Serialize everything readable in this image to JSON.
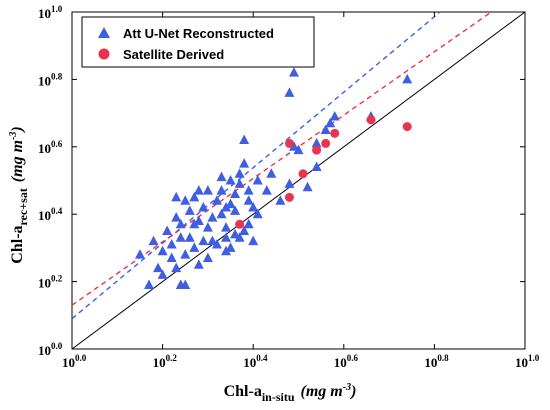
{
  "chart_data": {
    "type": "scatter",
    "xlim": [
      0.0,
      1.0
    ],
    "ylim": [
      0.0,
      1.0
    ],
    "log_scale": true,
    "x_ticks": [
      {
        "base": "10",
        "exp": "0.0"
      },
      {
        "base": "10",
        "exp": "0.2"
      },
      {
        "base": "10",
        "exp": "0.4"
      },
      {
        "base": "10",
        "exp": "0.6"
      },
      {
        "base": "10",
        "exp": "0.8"
      },
      {
        "base": "10",
        "exp": "1.0"
      }
    ],
    "y_ticks": [
      {
        "base": "10",
        "exp": "0.0"
      },
      {
        "base": "10",
        "exp": "0.2"
      },
      {
        "base": "10",
        "exp": "0.4"
      },
      {
        "base": "10",
        "exp": "0.6"
      },
      {
        "base": "10",
        "exp": "0.8"
      },
      {
        "base": "10",
        "exp": "1.0"
      }
    ],
    "xlabel": {
      "main": "Chl-a",
      "sub": "in-situ",
      "unit": "mg m",
      "unit_sup": "-3",
      "close": ")",
      "open": "("
    },
    "ylabel": {
      "main": "Chl-a",
      "sub": "rec+sat",
      "unit": "mg m",
      "unit_sup": "-3",
      "close": ")",
      "open": "("
    },
    "legend_position": "top-left",
    "identity_line": {
      "color": "#000000"
    },
    "series": [
      {
        "name": "Att U-Net Reconstructed",
        "marker": "triangle",
        "color": "#3f5fe0",
        "fit": {
          "intercept": 0.09,
          "slope": 1.12
        },
        "points": [
          [
            0.15,
            0.28
          ],
          [
            0.17,
            0.19
          ],
          [
            0.18,
            0.32
          ],
          [
            0.19,
            0.24
          ],
          [
            0.2,
            0.29
          ],
          [
            0.2,
            0.22
          ],
          [
            0.21,
            0.35
          ],
          [
            0.22,
            0.31
          ],
          [
            0.22,
            0.27
          ],
          [
            0.23,
            0.24
          ],
          [
            0.23,
            0.39
          ],
          [
            0.23,
            0.45
          ],
          [
            0.24,
            0.19
          ],
          [
            0.24,
            0.33
          ],
          [
            0.24,
            0.37
          ],
          [
            0.25,
            0.19
          ],
          [
            0.25,
            0.28
          ],
          [
            0.25,
            0.44
          ],
          [
            0.26,
            0.41
          ],
          [
            0.26,
            0.33
          ],
          [
            0.27,
            0.37
          ],
          [
            0.27,
            0.45
          ],
          [
            0.27,
            0.3
          ],
          [
            0.28,
            0.47
          ],
          [
            0.28,
            0.25
          ],
          [
            0.28,
            0.38
          ],
          [
            0.29,
            0.32
          ],
          [
            0.29,
            0.42
          ],
          [
            0.3,
            0.36
          ],
          [
            0.3,
            0.47
          ],
          [
            0.3,
            0.27
          ],
          [
            0.31,
            0.32
          ],
          [
            0.31,
            0.39
          ],
          [
            0.32,
            0.44
          ],
          [
            0.32,
            0.31
          ],
          [
            0.33,
            0.47
          ],
          [
            0.33,
            0.4
          ],
          [
            0.33,
            0.51
          ],
          [
            0.34,
            0.36
          ],
          [
            0.34,
            0.33
          ],
          [
            0.34,
            0.29
          ],
          [
            0.34,
            0.42
          ],
          [
            0.35,
            0.43
          ],
          [
            0.35,
            0.5
          ],
          [
            0.35,
            0.3
          ],
          [
            0.36,
            0.34
          ],
          [
            0.36,
            0.41
          ],
          [
            0.36,
            0.46
          ],
          [
            0.37,
            0.52
          ],
          [
            0.37,
            0.49
          ],
          [
            0.37,
            0.33
          ],
          [
            0.38,
            0.62
          ],
          [
            0.38,
            0.55
          ],
          [
            0.38,
            0.35
          ],
          [
            0.39,
            0.44
          ],
          [
            0.39,
            0.47
          ],
          [
            0.39,
            0.37
          ],
          [
            0.4,
            0.32
          ],
          [
            0.4,
            0.42
          ],
          [
            0.41,
            0.5
          ],
          [
            0.41,
            0.4
          ],
          [
            0.43,
            0.47
          ],
          [
            0.44,
            0.52
          ],
          [
            0.46,
            0.44
          ],
          [
            0.48,
            0.76
          ],
          [
            0.48,
            0.49
          ],
          [
            0.49,
            0.6
          ],
          [
            0.49,
            0.82
          ],
          [
            0.5,
            0.59
          ],
          [
            0.52,
            0.48
          ],
          [
            0.54,
            0.61
          ],
          [
            0.54,
            0.54
          ],
          [
            0.56,
            0.65
          ],
          [
            0.57,
            0.67
          ],
          [
            0.58,
            0.69
          ],
          [
            0.66,
            0.69
          ],
          [
            0.74,
            0.8
          ]
        ]
      },
      {
        "name": "Satellite Derived",
        "marker": "circle",
        "color": "#e8344e",
        "fit": {
          "intercept": 0.13,
          "slope": 0.94
        },
        "points": [
          [
            0.37,
            0.37
          ],
          [
            0.48,
            0.61
          ],
          [
            0.48,
            0.45
          ],
          [
            0.51,
            0.52
          ],
          [
            0.54,
            0.59
          ],
          [
            0.56,
            0.61
          ],
          [
            0.58,
            0.64
          ],
          [
            0.66,
            0.68
          ],
          [
            0.74,
            0.66
          ]
        ]
      }
    ]
  }
}
